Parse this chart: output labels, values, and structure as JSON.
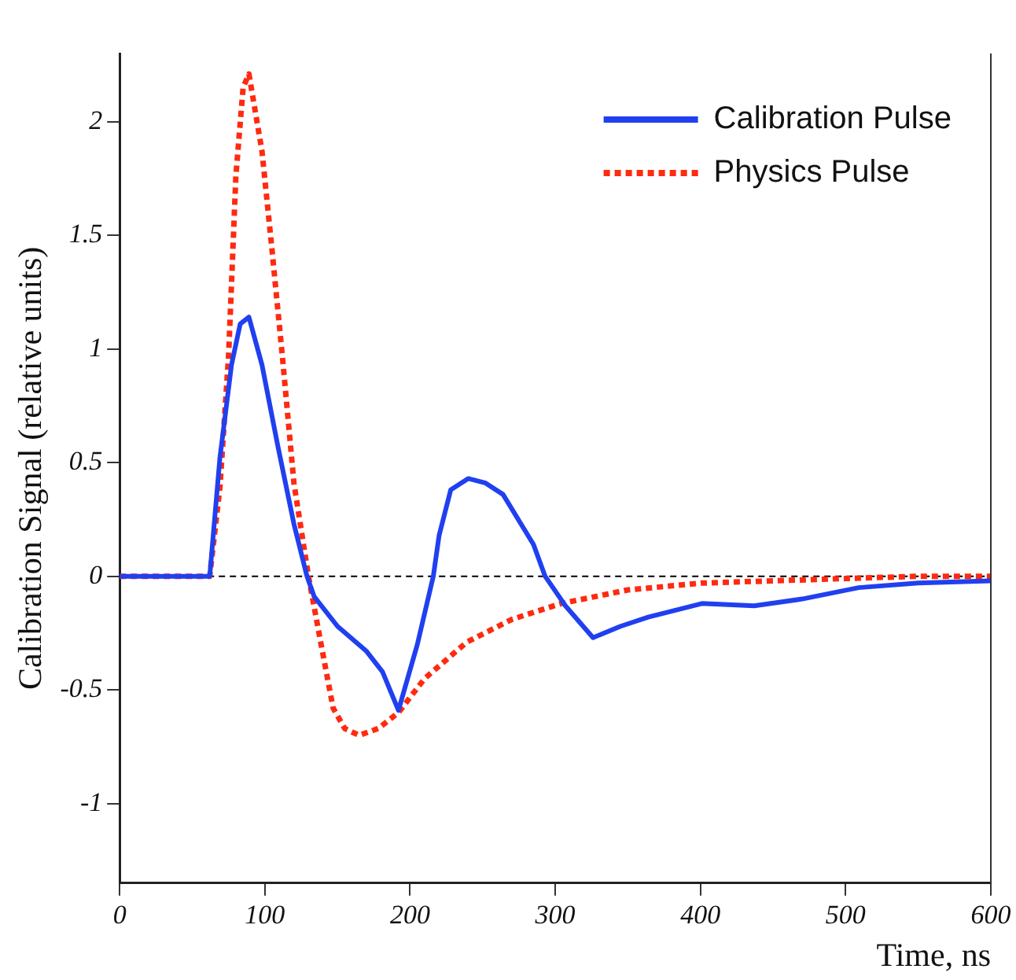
{
  "chart_data": {
    "type": "line",
    "xlabel": "Time, ns",
    "ylabel": "Calibration Signal (relative units)",
    "xlim": [
      0,
      600
    ],
    "xticks": [
      0,
      100,
      200,
      300,
      400,
      500,
      600
    ],
    "ylim": [
      -1.35,
      2.3
    ],
    "yticks": [
      -1,
      -0.5,
      0,
      0.5,
      1,
      1.5,
      2
    ],
    "grid": false,
    "legend": "top right",
    "marker": "none",
    "ref_lines": [
      {
        "axis": "y",
        "value": 0,
        "color": "#000000",
        "line_style": "dotted"
      }
    ],
    "series": [
      {
        "name": "Calibration Pulse",
        "color": "#2040f0",
        "line_style": "solid",
        "x": [
          0,
          62,
          69,
          77,
          83,
          89,
          98,
          109,
          120,
          129,
          134,
          150,
          170,
          181,
          192,
          205,
          216,
          220,
          228,
          240,
          252,
          264,
          285,
          293,
          307,
          326,
          345,
          364,
          401,
          437,
          470,
          509,
          550,
          600
        ],
        "values": [
          0,
          0,
          0.52,
          0.93,
          1.11,
          1.14,
          0.93,
          0.57,
          0.23,
          0,
          -0.09,
          -0.22,
          -0.33,
          -0.42,
          -0.59,
          -0.3,
          0,
          0.18,
          0.38,
          0.43,
          0.41,
          0.36,
          0.14,
          0,
          -0.13,
          -0.27,
          -0.22,
          -0.18,
          -0.12,
          -0.13,
          -0.1,
          -0.05,
          -0.03,
          -0.02
        ]
      },
      {
        "name": "Physics Pulse",
        "color": "#ff2a10",
        "line_style": "dotted",
        "x": [
          0,
          62,
          69,
          75,
          80,
          85,
          89,
          98,
          105,
          112,
          120,
          130,
          139,
          147,
          155,
          165,
          178,
          192,
          210,
          239,
          270,
          304,
          350,
          401,
          450,
          500,
          550,
          600
        ],
        "values": [
          0,
          0,
          0.39,
          0.97,
          1.76,
          2.15,
          2.21,
          1.87,
          1.43,
          0.97,
          0.41,
          0,
          -0.31,
          -0.58,
          -0.67,
          -0.7,
          -0.67,
          -0.6,
          -0.45,
          -0.29,
          -0.19,
          -0.12,
          -0.06,
          -0.03,
          -0.02,
          -0.01,
          0,
          0
        ]
      }
    ]
  }
}
